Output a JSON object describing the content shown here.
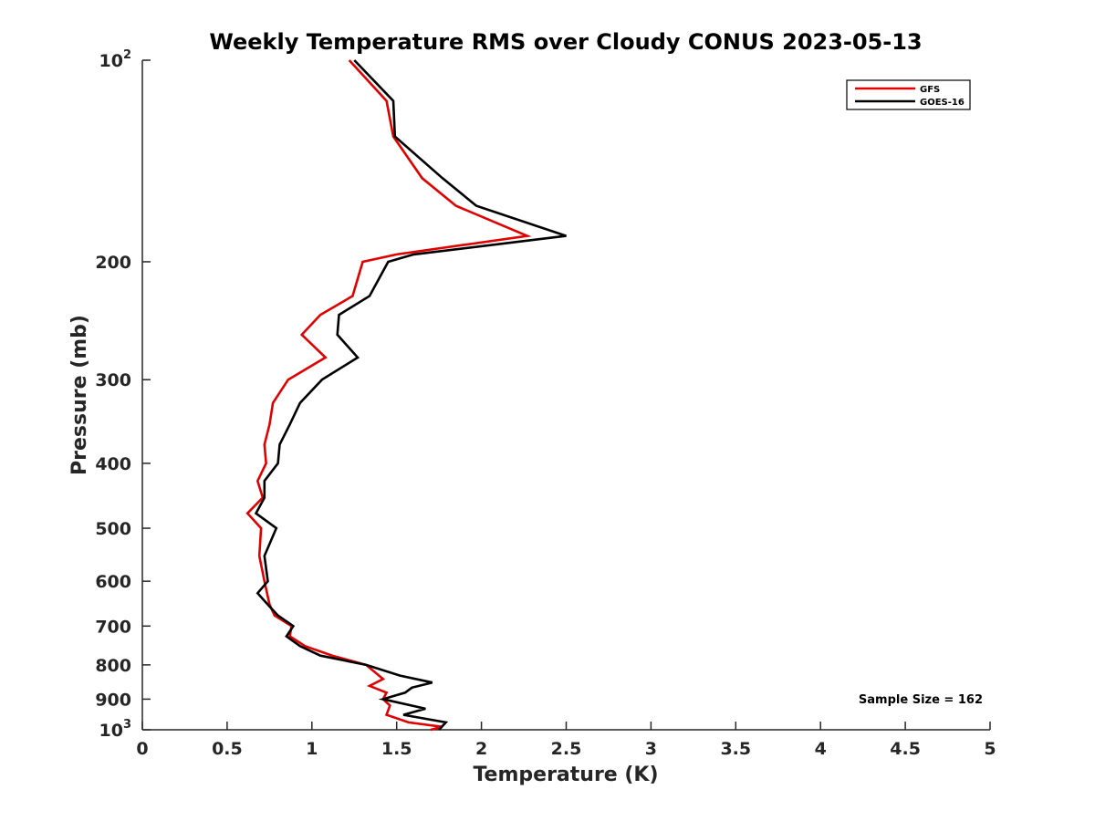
{
  "chart_data": {
    "type": "line",
    "title": "Weekly Temperature RMS over Cloudy CONUS 2023-05-13",
    "xlabel": "Temperature (K)",
    "ylabel": "Pressure (mb)",
    "xlim": [
      0,
      5
    ],
    "ylim": [
      100,
      1000
    ],
    "yscale": "log",
    "y_reversed": true,
    "x_ticks": [
      0,
      0.5,
      1,
      1.5,
      2,
      2.5,
      3,
      3.5,
      4,
      4.5,
      5
    ],
    "x_tick_labels": [
      "0",
      "0.5",
      "1",
      "1.5",
      "2",
      "2.5",
      "3",
      "3.5",
      "4",
      "4.5",
      "5"
    ],
    "y_ticks": [
      {
        "value": 100,
        "label": "10",
        "sup": "2"
      },
      {
        "value": 200,
        "label": "200",
        "sup": ""
      },
      {
        "value": 300,
        "label": "300",
        "sup": ""
      },
      {
        "value": 400,
        "label": "400",
        "sup": ""
      },
      {
        "value": 500,
        "label": "500",
        "sup": ""
      },
      {
        "value": 600,
        "label": "600",
        "sup": ""
      },
      {
        "value": 700,
        "label": "700",
        "sup": ""
      },
      {
        "value": 800,
        "label": "800",
        "sup": ""
      },
      {
        "value": 900,
        "label": "900",
        "sup": ""
      },
      {
        "value": 1000,
        "label": "10",
        "sup": "3"
      }
    ],
    "grid": false,
    "legend_position": "top-right",
    "annotation": "Sample Size = 162",
    "series": [
      {
        "name": "GFS",
        "color": "#e00000",
        "points": [
          [
            1.22,
            100
          ],
          [
            1.44,
            115
          ],
          [
            1.48,
            130
          ],
          [
            1.65,
            150
          ],
          [
            1.85,
            165
          ],
          [
            2.27,
            183
          ],
          [
            1.5,
            195
          ],
          [
            1.3,
            200
          ],
          [
            1.24,
            225
          ],
          [
            1.05,
            240
          ],
          [
            0.94,
            257
          ],
          [
            1.08,
            278
          ],
          [
            0.86,
            300
          ],
          [
            0.77,
            325
          ],
          [
            0.75,
            350
          ],
          [
            0.72,
            375
          ],
          [
            0.73,
            400
          ],
          [
            0.68,
            425
          ],
          [
            0.71,
            450
          ],
          [
            0.62,
            475
          ],
          [
            0.7,
            500
          ],
          [
            0.69,
            550
          ],
          [
            0.72,
            600
          ],
          [
            0.75,
            650
          ],
          [
            0.78,
            675
          ],
          [
            0.88,
            700
          ],
          [
            0.87,
            725
          ],
          [
            0.96,
            750
          ],
          [
            1.12,
            775
          ],
          [
            1.32,
            800
          ],
          [
            1.42,
            840
          ],
          [
            1.34,
            860
          ],
          [
            1.44,
            880
          ],
          [
            1.42,
            900
          ],
          [
            1.46,
            920
          ],
          [
            1.44,
            950
          ],
          [
            1.57,
            975
          ],
          [
            1.77,
            990
          ],
          [
            1.7,
            1000
          ]
        ]
      },
      {
        "name": "GOES-16",
        "color": "#000000",
        "points": [
          [
            1.25,
            100
          ],
          [
            1.48,
            115
          ],
          [
            1.49,
            130
          ],
          [
            1.77,
            150
          ],
          [
            1.97,
            165
          ],
          [
            2.5,
            183
          ],
          [
            1.6,
            195
          ],
          [
            1.45,
            200
          ],
          [
            1.34,
            225
          ],
          [
            1.16,
            240
          ],
          [
            1.15,
            257
          ],
          [
            1.27,
            278
          ],
          [
            1.06,
            300
          ],
          [
            0.93,
            325
          ],
          [
            0.87,
            350
          ],
          [
            0.81,
            375
          ],
          [
            0.8,
            400
          ],
          [
            0.72,
            425
          ],
          [
            0.72,
            450
          ],
          [
            0.67,
            475
          ],
          [
            0.79,
            500
          ],
          [
            0.72,
            550
          ],
          [
            0.74,
            600
          ],
          [
            0.68,
            625
          ],
          [
            0.74,
            650
          ],
          [
            0.8,
            675
          ],
          [
            0.89,
            700
          ],
          [
            0.85,
            725
          ],
          [
            0.93,
            750
          ],
          [
            1.05,
            775
          ],
          [
            1.32,
            800
          ],
          [
            1.52,
            830
          ],
          [
            1.71,
            850
          ],
          [
            1.59,
            865
          ],
          [
            1.55,
            880
          ],
          [
            1.42,
            900
          ],
          [
            1.67,
            930
          ],
          [
            1.54,
            950
          ],
          [
            1.79,
            975
          ],
          [
            1.75,
            1000
          ]
        ]
      }
    ]
  }
}
